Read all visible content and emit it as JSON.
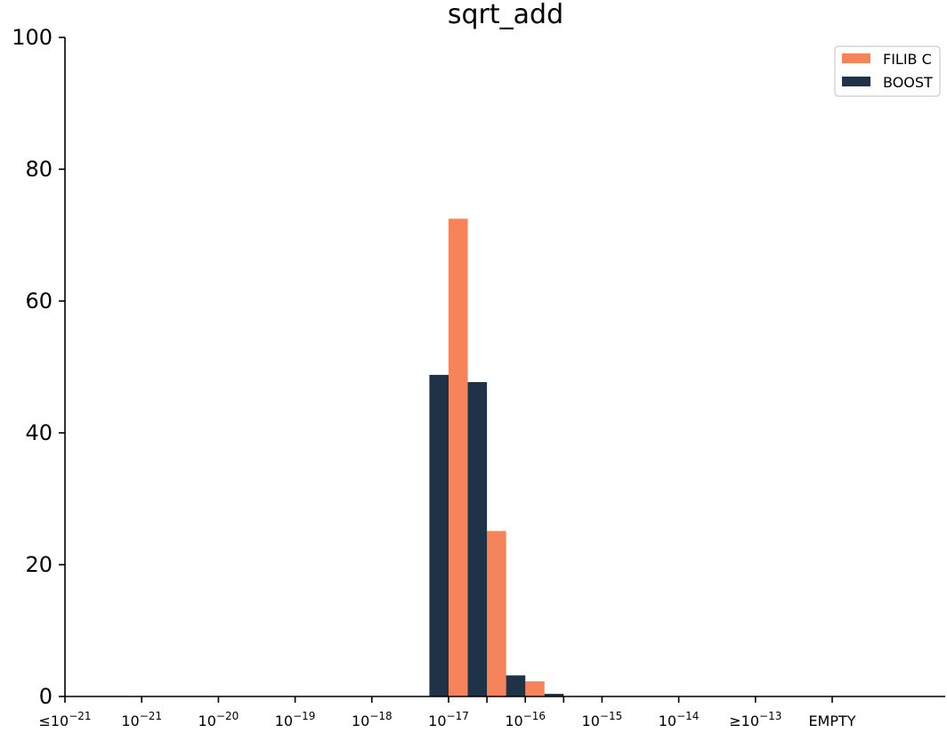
{
  "chart_data": {
    "type": "bar",
    "title": "sqrt_add",
    "xlabel": "",
    "ylabel": "",
    "ylim": [
      0,
      100
    ],
    "yticks": [
      0,
      20,
      40,
      60,
      80,
      100
    ],
    "categories": [
      {
        "base": "10",
        "exp": "−21",
        "prefix": "≤"
      },
      {
        "base": "10",
        "exp": "−21",
        "prefix": ""
      },
      {
        "base": "10",
        "exp": "−20",
        "prefix": ""
      },
      {
        "base": "10",
        "exp": "−19",
        "prefix": ""
      },
      {
        "base": "10",
        "exp": "−18",
        "prefix": ""
      },
      {
        "base": "10",
        "exp": "−17",
        "prefix": ""
      },
      {
        "base": "10",
        "exp": "−16",
        "prefix": ""
      },
      {
        "base": "10",
        "exp": "−15",
        "prefix": ""
      },
      {
        "base": "10",
        "exp": "−14",
        "prefix": ""
      },
      {
        "base": "10",
        "exp": "−13",
        "prefix": "≥"
      },
      {
        "base": "EMPTY",
        "exp": "",
        "prefix": ""
      }
    ],
    "bin_centers": [
      0,
      1,
      2,
      3,
      4,
      5,
      5.5,
      6,
      6.5,
      7,
      8,
      9,
      10
    ],
    "series": [
      {
        "name": "FILIB C",
        "color": "#F5845A",
        "bars": [
          {
            "x": 5.125,
            "value": 72.5
          },
          {
            "x": 5.625,
            "value": 25.1
          },
          {
            "x": 6.125,
            "value": 2.3
          }
        ]
      },
      {
        "name": "BOOST",
        "color": "#1E3248",
        "bars": [
          {
            "x": 4.875,
            "value": 48.8
          },
          {
            "x": 5.375,
            "value": 47.7
          },
          {
            "x": 5.875,
            "value": 3.2
          },
          {
            "x": 6.375,
            "value": 0.4
          }
        ]
      }
    ],
    "legend": {
      "position": "top-right"
    },
    "grid": false
  }
}
